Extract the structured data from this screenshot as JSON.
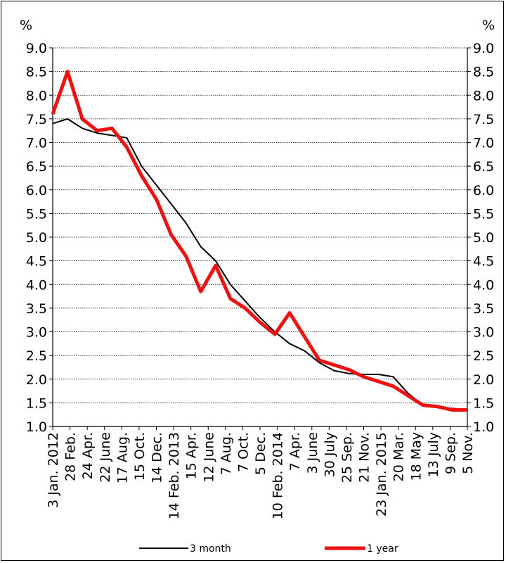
{
  "chart_data": {
    "type": "line",
    "unit_left": "%",
    "unit_right": "%",
    "ylim": [
      1.0,
      9.0
    ],
    "yticks": [
      "1.0",
      "1.5",
      "2.0",
      "2.5",
      "3.0",
      "3.5",
      "4.0",
      "4.5",
      "5.0",
      "5.5",
      "6.0",
      "6.5",
      "7.0",
      "7.5",
      "8.0",
      "8.5",
      "9.0"
    ],
    "grid": true,
    "legend_position": "bottom",
    "x_ticks": [
      "3 Jan. 2012",
      "28 Feb.",
      "24 Apr.",
      "22 June",
      "17 Aug.",
      "15 Oct.",
      "14 Dec.",
      "14 Feb. 2013",
      "15 Apr.",
      "12 June",
      "7 Aug.",
      "7 Oct.",
      "5 Dec.",
      "10 Feb. 2014",
      "7 Apr.",
      "3 June",
      "30 July",
      "25 Sep.",
      "21 Nov.",
      "23 Jan. 2015",
      "20 Mar.",
      "18 May",
      "13 July",
      "9 Sep.",
      "5 Nov."
    ],
    "series": [
      {
        "name": "3 month",
        "color": "#000000",
        "values": [
          7.4,
          7.5,
          7.3,
          7.2,
          7.15,
          7.1,
          6.5,
          6.1,
          5.7,
          5.3,
          4.8,
          4.5,
          4.0,
          3.65,
          3.3,
          3.0,
          2.75,
          2.6,
          2.35,
          2.18,
          2.12,
          2.1,
          2.1,
          2.05,
          1.7,
          1.45,
          1.4,
          1.38,
          1.35
        ]
      },
      {
        "name": "1 year",
        "color": "#ee1111",
        "values": [
          7.6,
          8.5,
          7.5,
          7.25,
          7.3,
          6.9,
          6.3,
          5.8,
          5.05,
          4.6,
          3.85,
          4.4,
          3.7,
          3.5,
          3.2,
          2.95,
          3.4,
          2.9,
          2.4,
          2.3,
          2.2,
          2.05,
          1.95,
          1.85,
          1.65,
          1.45,
          1.42,
          1.35,
          1.35
        ]
      }
    ]
  }
}
